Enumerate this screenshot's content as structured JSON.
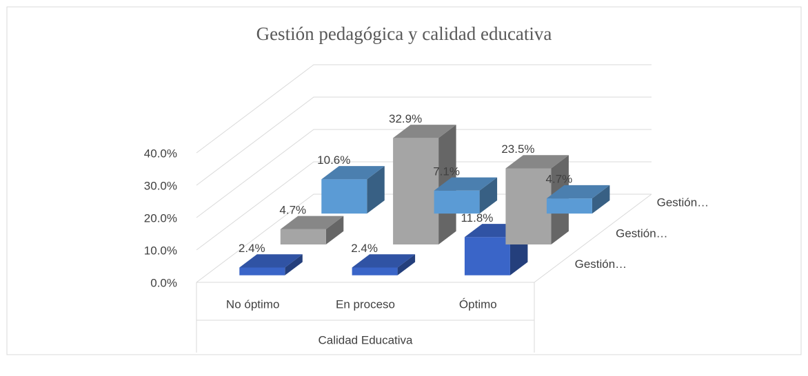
{
  "chart_data": {
    "type": "bar3d",
    "title": "Gestión pedagógica y calidad educativa",
    "x_label": "Calidad Educativa",
    "categories": [
      "No óptimo",
      "En proceso",
      "Óptimo"
    ],
    "series": [
      {
        "name": "Gestión…",
        "color": "#5b9bd5",
        "values": [
          10.6,
          7.1,
          4.7
        ],
        "value_labels": [
          "10.6%",
          "7.1%",
          "4.7%"
        ]
      },
      {
        "name": "Gestión…",
        "color": "#a5a5a5",
        "values": [
          4.7,
          32.9,
          23.5
        ],
        "value_labels": [
          "4.7%",
          "32.9%",
          "23.5%"
        ]
      },
      {
        "name": "Gestión…",
        "color": "#3a65c8",
        "values": [
          2.4,
          2.4,
          11.8
        ],
        "value_labels": [
          "2.4%",
          "2.4%",
          "11.8%"
        ]
      }
    ],
    "ylim": [
      0,
      40
    ],
    "yticks": [
      {
        "value": 0,
        "label": "0.0%"
      },
      {
        "value": 10,
        "label": "10.0%"
      },
      {
        "value": 20,
        "label": "20.0%"
      },
      {
        "value": 30,
        "label": "30.0%"
      },
      {
        "value": 40,
        "label": "40.0%"
      }
    ],
    "grid": true
  }
}
